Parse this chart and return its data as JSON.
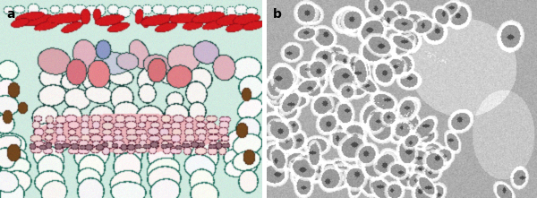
{
  "fig_width": 6.0,
  "fig_height": 2.21,
  "dpi": 100,
  "bg_color": "#ffffff",
  "label_a": "a",
  "label_b": "b",
  "label_fontsize": 10,
  "label_color": "#000000"
}
